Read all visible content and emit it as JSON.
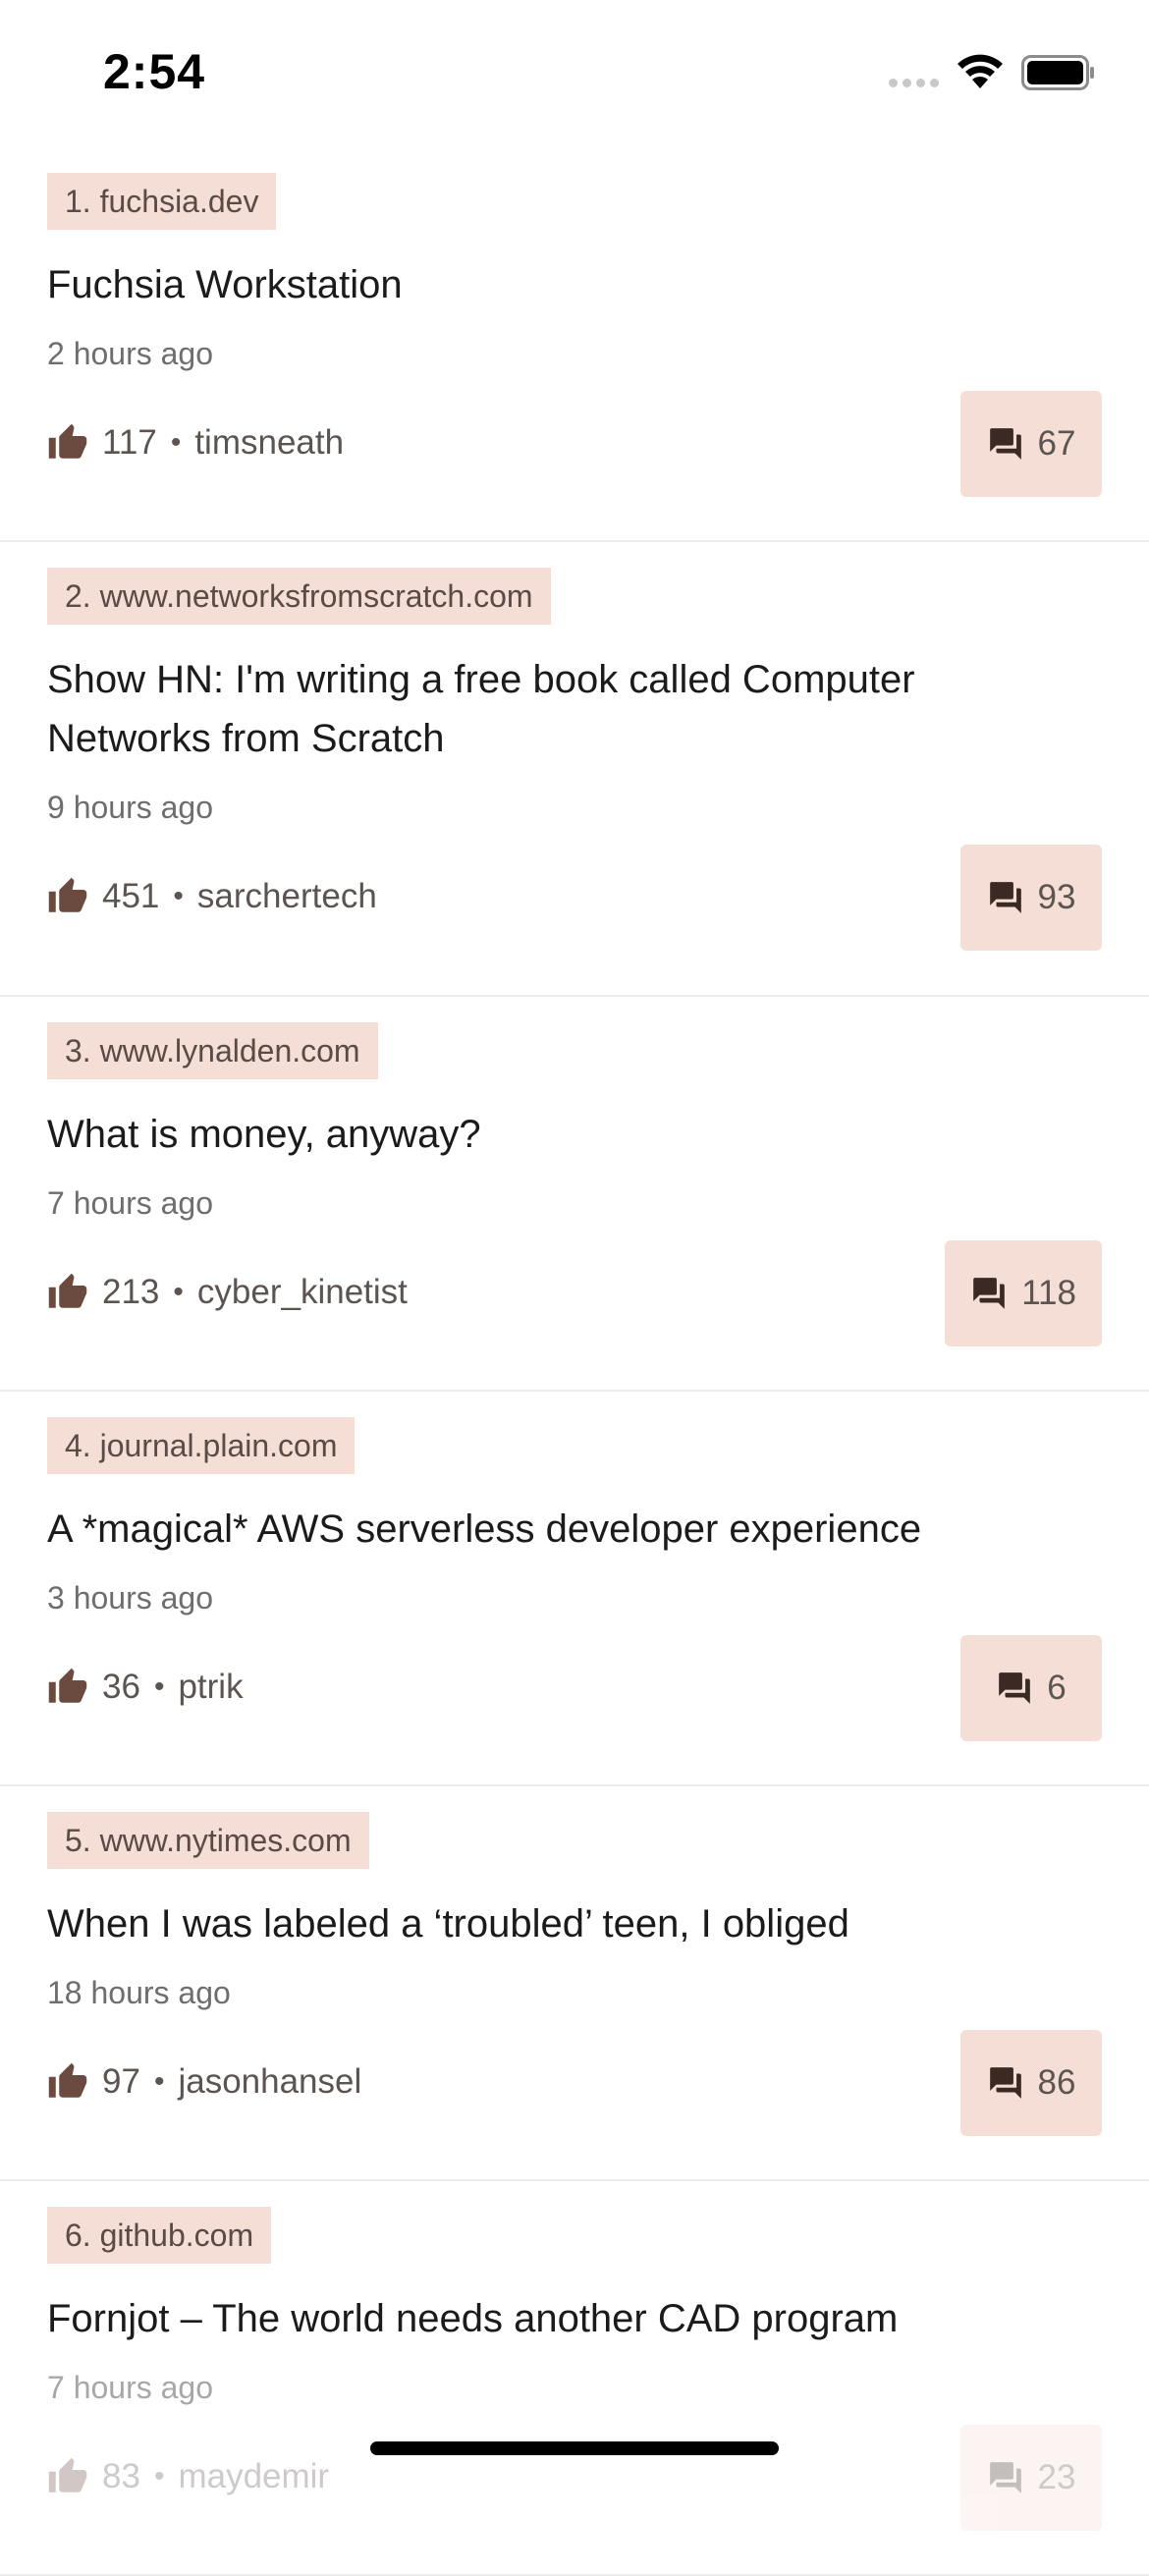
{
  "status": {
    "time": "2:54"
  },
  "stories": [
    {
      "domain": "1. fuchsia.dev",
      "title": "Fuchsia Workstation",
      "age": "2 hours ago",
      "points": "117",
      "author": "timsneath",
      "comments": "67"
    },
    {
      "domain": "2. www.networksfromscratch.com",
      "title": "Show HN: I'm writing a free book called Computer Networks from Scratch",
      "age": "9 hours ago",
      "points": "451",
      "author": "sarchertech",
      "comments": "93"
    },
    {
      "domain": "3. www.lynalden.com",
      "title": "What is money, anyway?",
      "age": "7 hours ago",
      "points": "213",
      "author": "cyber_kinetist",
      "comments": "118"
    },
    {
      "domain": "4. journal.plain.com",
      "title": "A *magical* AWS serverless developer experience",
      "age": "3 hours ago",
      "points": "36",
      "author": "ptrik",
      "comments": "6"
    },
    {
      "domain": "5. www.nytimes.com",
      "title": "When I was labeled a ‘troubled’ teen, I obliged",
      "age": "18 hours ago",
      "points": "97",
      "author": "jasonhansel",
      "comments": "86"
    },
    {
      "domain": "6. github.com",
      "title": "Fornjot – The world needs another CAD program",
      "age": "7 hours ago",
      "points": "83",
      "author": "maydemir",
      "comments": "23"
    }
  ],
  "icons": {
    "upvote": "thumbs-up-icon",
    "comments": "comment-bubbles-icon",
    "wifi": "wifi-icon",
    "battery": "battery-icon",
    "signal": "signal-dots-icon"
  },
  "colors": {
    "chip": "#f5ded6",
    "icon": "#6b4a3f"
  }
}
